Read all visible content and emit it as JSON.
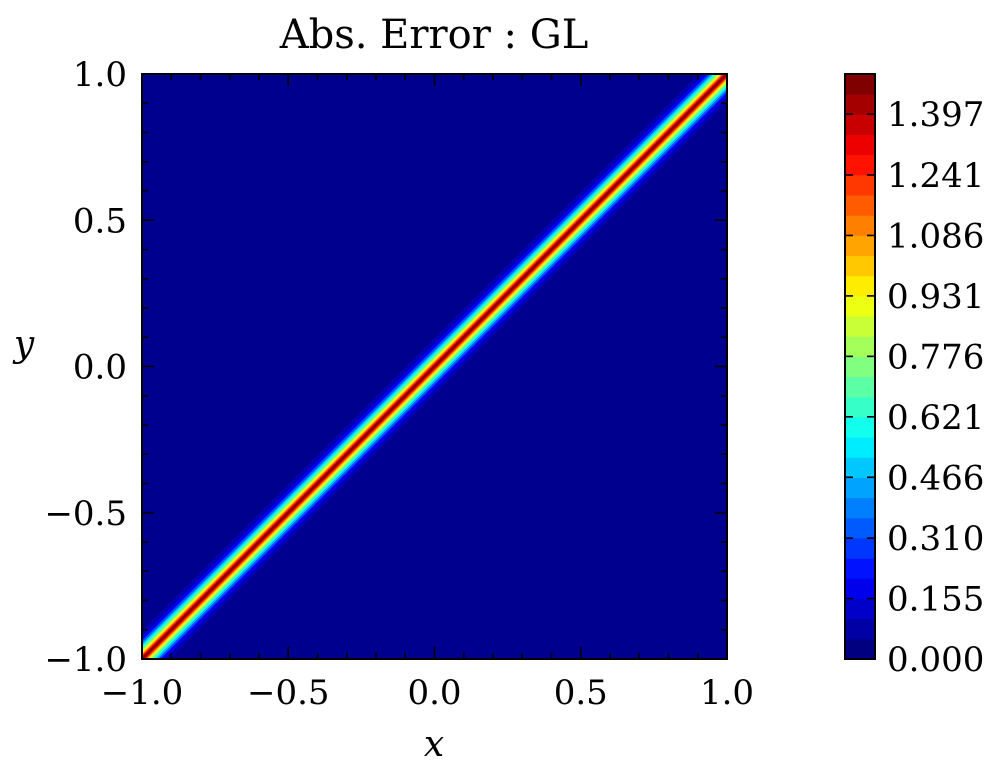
{
  "chart_data": {
    "type": "heatmap",
    "title": "Abs. Error : GL",
    "xlabel": "x",
    "ylabel": "y",
    "xlim": [
      -1.0,
      1.0
    ],
    "ylim": [
      -1.0,
      1.0
    ],
    "xticks": [
      "−1.0",
      "−0.5",
      "0.0",
      "0.5",
      "1.0"
    ],
    "yticks": [
      "−1.0",
      "−0.5",
      "0.0",
      "0.5",
      "1.0"
    ],
    "xtick_values": [
      -1.0,
      -0.5,
      0.0,
      0.5,
      1.0
    ],
    "ytick_values": [
      -1.0,
      -0.5,
      0.0,
      0.5,
      1.0
    ],
    "colormap": "jet",
    "colorbar": {
      "min": 0.0,
      "max": 1.5,
      "levels": 29,
      "tick_values": [
        0.0,
        0.155,
        0.31,
        0.466,
        0.621,
        0.776,
        0.931,
        1.086,
        1.241,
        1.397
      ],
      "tick_labels": [
        "0.000",
        "0.155",
        "0.310",
        "0.466",
        "0.621",
        "0.776",
        "0.931",
        "1.086",
        "1.241",
        "1.397"
      ]
    },
    "feature": {
      "description_type": "diagonal band",
      "line": "y = x",
      "peak_value": 1.5,
      "background_value": 0.0
    },
    "grid": false
  }
}
